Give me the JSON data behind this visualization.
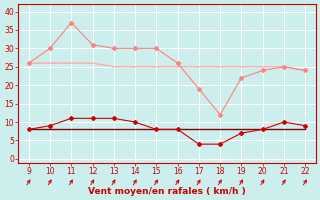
{
  "x": [
    9,
    10,
    11,
    12,
    13,
    14,
    15,
    16,
    17,
    18,
    19,
    20,
    21,
    22
  ],
  "rafales": [
    26,
    30,
    37,
    31,
    30,
    30,
    30,
    26,
    19,
    12,
    22,
    24,
    25,
    24
  ],
  "vent_moyen": [
    8,
    9,
    11,
    11,
    11,
    10,
    8,
    8,
    4,
    4,
    7,
    8,
    10,
    9
  ],
  "avg_rafales": [
    26,
    26,
    26,
    26,
    25,
    25,
    25,
    25,
    25,
    25,
    25,
    25,
    25,
    24
  ],
  "avg_vent": [
    8,
    8,
    8,
    8,
    8,
    8,
    8,
    8,
    8,
    8,
    8,
    8,
    8,
    8
  ],
  "color_rafales": "#ff8080",
  "color_vent": "#cc0000",
  "color_avg_rafales": "#ffaaaa",
  "color_avg_vent": "#880000",
  "bg_color": "#cceeed",
  "grid_color": "#ffffff",
  "xlabel": "Vent moyen/en rafales ( km/h )",
  "xlabel_color": "#cc0000",
  "arrow_color": "#cc0000",
  "spine_color": "#cc0000",
  "tick_color": "#cc0000",
  "yticks": [
    0,
    5,
    10,
    15,
    20,
    25,
    30,
    35,
    40
  ],
  "xticks": [
    9,
    10,
    11,
    12,
    13,
    14,
    15,
    16,
    17,
    18,
    19,
    20,
    21,
    22
  ],
  "ylim": [
    -1,
    42
  ],
  "xlim": [
    8.5,
    22.5
  ]
}
